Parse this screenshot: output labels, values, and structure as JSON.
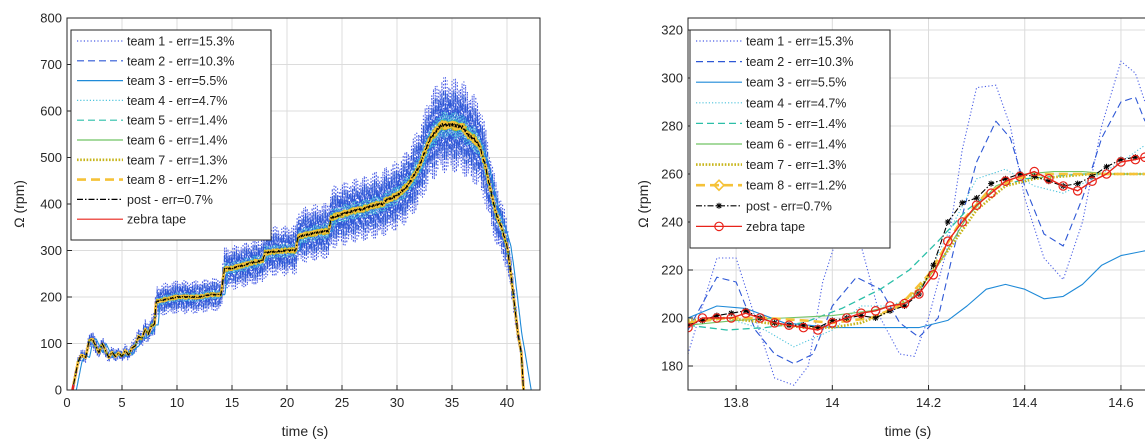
{
  "chart_data": [
    {
      "type": "line",
      "xlabel": "time (s)",
      "ylabel": "Ω (rpm)",
      "xlim": [
        0,
        43
      ],
      "ylim": [
        0,
        800
      ],
      "xticks": [
        0,
        5,
        10,
        15,
        20,
        25,
        30,
        35,
        40
      ],
      "xtick_labels": [
        "0",
        "5",
        "10",
        "15",
        "20",
        "25",
        "30",
        "35",
        "40"
      ],
      "yticks": [
        0,
        100,
        200,
        300,
        400,
        500,
        600,
        700,
        800
      ],
      "ytick_labels": [
        "0",
        "100",
        "200",
        "300",
        "400",
        "500",
        "600",
        "700",
        "800"
      ],
      "grid": true,
      "legend_position": "top-left",
      "legend": [
        "team 1 - err=15.3%",
        "team 2 - err=10.3%",
        "team 3 - err=5.5%",
        "team 4 - err=4.7%",
        "team 5 - err=1.4%",
        "team 6 - err=1.4%",
        "team 7 - err=1.3%",
        "team 8 - err=1.2%",
        "post - err=0.7%",
        "zebra tape"
      ],
      "series": [
        {
          "key": "zebra",
          "name": "zebra tape",
          "color": "#e8231a",
          "x": [
            0.5,
            1.0,
            1.3,
            1.7,
            2.0,
            2.3,
            2.6,
            2.9,
            3.2,
            3.5,
            3.8,
            4.1,
            4.4,
            4.7,
            5.0,
            5.3,
            5.6,
            5.9,
            6.2,
            6.5,
            6.8,
            7.1,
            7.4,
            7.7,
            7.95,
            8.1,
            9.0,
            10.0,
            11.0,
            12.0,
            13.0,
            14.0,
            14.3,
            15.0,
            16.0,
            17.0,
            17.8,
            18.0,
            19.0,
            20.0,
            20.8,
            21.0,
            22.0,
            23.0,
            23.8,
            24.0,
            25.0,
            26.0,
            27.0,
            28.0,
            28.7,
            29.0,
            30.0,
            31.0,
            32.0,
            33.0,
            34.0,
            35.0,
            36.0,
            36.5,
            37.0,
            37.5,
            38.0,
            38.5,
            39.0,
            39.5,
            40.0,
            40.3,
            40.6,
            41.0,
            41.3,
            41.5
          ],
          "y": [
            0,
            60,
            75,
            70,
            105,
            110,
            95,
            80,
            100,
            85,
            70,
            82,
            72,
            80,
            72,
            85,
            75,
            90,
            95,
            115,
            110,
            130,
            120,
            140,
            140,
            190,
            195,
            200,
            200,
            200,
            205,
            205,
            260,
            262,
            268,
            275,
            278,
            295,
            298,
            300,
            300,
            330,
            335,
            340,
            342,
            370,
            378,
            385,
            390,
            398,
            400,
            408,
            418,
            440,
            480,
            540,
            570,
            570,
            565,
            548,
            540,
            525,
            485,
            430,
            380,
            350,
            310,
            260,
            200,
            120,
            80,
            0
          ]
        },
        {
          "key": "team1",
          "name": "team 1 - err=15.3%",
          "color": "#4a5ee6"
        },
        {
          "key": "team2",
          "name": "team 2 - err=10.3%",
          "color": "#2e58d6"
        },
        {
          "key": "team3",
          "name": "team 3 - err=5.5%",
          "color": "#1f8ad8"
        },
        {
          "key": "team4",
          "name": "team 4 - err=4.7%",
          "color": "#4fc4dc"
        },
        {
          "key": "team5",
          "name": "team 5 - err=1.4%",
          "color": "#2cbfa8"
        },
        {
          "key": "team6",
          "name": "team 6 - err=1.4%",
          "color": "#72c465"
        },
        {
          "key": "team7",
          "name": "team 7 - err=1.3%",
          "color": "#c7b51c"
        },
        {
          "key": "team8",
          "name": "team 8 - err=1.2%",
          "color": "#f5c238"
        },
        {
          "key": "post",
          "name": "post - err=0.7%",
          "color": "#000000"
        }
      ]
    },
    {
      "type": "line",
      "xlabel": "time (s)",
      "ylabel": "Ω (rpm)",
      "xlim": [
        13.7,
        14.65
      ],
      "ylim": [
        170,
        325
      ],
      "xticks": [
        13.8,
        14.0,
        14.2,
        14.4,
        14.6
      ],
      "xtick_labels": [
        "13.8",
        "14",
        "14.2",
        "14.4",
        "14.6"
      ],
      "yticks": [
        180,
        200,
        220,
        240,
        260,
        280,
        300,
        320
      ],
      "ytick_labels": [
        "180",
        "200",
        "220",
        "240",
        "260",
        "280",
        "300",
        "320"
      ],
      "grid": true,
      "legend_position": "top-left",
      "legend": [
        "team 1 - err=15.3%",
        "team 2 - err=10.3%",
        "team 3 - err=5.5%",
        "team 4 - err=4.7%",
        "team 5 - err=1.4%",
        "team 6 - err=1.4%",
        "team 7 - err=1.3%",
        "team 8 - err=1.2%",
        "post - err=0.7%",
        "zebra tape"
      ],
      "series": [
        {
          "key": "team1",
          "name": "team 1 - err=15.3%",
          "color": "#4a5ee6",
          "x": [
            13.7,
            13.76,
            13.8,
            13.84,
            13.88,
            13.92,
            13.95,
            13.98,
            14.02,
            14.06,
            14.1,
            14.14,
            14.17,
            14.2,
            14.24,
            14.27,
            14.3,
            14.34,
            14.37,
            14.4,
            14.44,
            14.48,
            14.52,
            14.56,
            14.6,
            14.63,
            14.65
          ],
          "y": [
            185,
            225,
            225,
            200,
            175,
            172,
            180,
            215,
            240,
            230,
            200,
            185,
            184,
            200,
            230,
            270,
            296,
            297,
            280,
            250,
            225,
            216,
            240,
            280,
            307,
            302,
            290
          ]
        },
        {
          "key": "team2",
          "name": "team 2 - err=10.3%",
          "color": "#2e58d6",
          "x": [
            13.7,
            13.76,
            13.8,
            13.84,
            13.88,
            13.92,
            13.96,
            14.0,
            14.05,
            14.1,
            14.14,
            14.18,
            14.22,
            14.26,
            14.3,
            14.34,
            14.37,
            14.4,
            14.44,
            14.48,
            14.52,
            14.56,
            14.6,
            14.63,
            14.65
          ],
          "y": [
            195,
            217,
            215,
            195,
            185,
            181,
            185,
            205,
            217,
            212,
            198,
            192,
            200,
            235,
            265,
            282,
            275,
            255,
            235,
            230,
            250,
            275,
            290,
            292,
            282
          ]
        },
        {
          "key": "team3",
          "name": "team 3 - err=5.5%",
          "color": "#1f8ad8",
          "x": [
            13.7,
            13.76,
            13.82,
            13.9,
            14.0,
            14.1,
            14.18,
            14.24,
            14.28,
            14.32,
            14.36,
            14.4,
            14.44,
            14.48,
            14.52,
            14.56,
            14.6,
            14.65
          ],
          "y": [
            200,
            205,
            204,
            198,
            196,
            196,
            196,
            199,
            205,
            212,
            214,
            212,
            208,
            209,
            214,
            222,
            226,
            228
          ]
        },
        {
          "key": "team4",
          "name": "team 4 - err=4.7%",
          "color": "#4fc4dc",
          "x": [
            13.7,
            13.78,
            13.86,
            13.92,
            14.0,
            14.06,
            14.12,
            14.18,
            14.24,
            14.3,
            14.36,
            14.42,
            14.48,
            14.54,
            14.6,
            14.65
          ],
          "y": [
            198,
            200,
            195,
            188,
            195,
            205,
            205,
            210,
            235,
            258,
            262,
            255,
            252,
            258,
            265,
            272
          ]
        },
        {
          "key": "team5",
          "name": "team 5 - err=1.4%",
          "color": "#2cbfa8",
          "x": [
            13.7,
            13.78,
            13.86,
            13.94,
            14.02,
            14.1,
            14.16,
            14.22,
            14.28,
            14.34,
            14.4,
            14.46,
            14.52,
            14.58,
            14.65
          ],
          "y": [
            197,
            195,
            196,
            198,
            204,
            212,
            220,
            232,
            245,
            254,
            258,
            259,
            260,
            260,
            260
          ]
        },
        {
          "key": "team6",
          "name": "team 6 - err=1.4%",
          "color": "#72c465",
          "x": [
            13.7,
            13.8,
            13.9,
            14.0,
            14.08,
            14.16,
            14.22,
            14.28,
            14.34,
            14.4,
            14.46,
            14.52,
            14.58,
            14.65
          ],
          "y": [
            197,
            199,
            200,
            201,
            203,
            207,
            222,
            242,
            255,
            260,
            261,
            261,
            260,
            260
          ]
        },
        {
          "key": "team7",
          "name": "team 7 - err=1.3%",
          "color": "#c7b51c",
          "x": [
            13.7,
            13.78,
            13.86,
            13.94,
            14.0,
            14.06,
            14.12,
            14.18,
            14.24,
            14.3,
            14.36,
            14.42,
            14.48,
            14.54,
            14.6,
            14.65
          ],
          "y": [
            199,
            200,
            198,
            196,
            196,
            198,
            203,
            212,
            228,
            245,
            255,
            258,
            259,
            260,
            260,
            260
          ]
        },
        {
          "key": "team8",
          "name": "team 8 - err=1.2%",
          "color": "#f5c238",
          "x": [
            13.7,
            13.78,
            13.86,
            13.94,
            14.0,
            14.08,
            14.14,
            14.2,
            14.26,
            14.32,
            14.38,
            14.44,
            14.5,
            14.56,
            14.62,
            14.65
          ],
          "y": [
            198,
            200,
            200,
            199,
            198,
            200,
            205,
            218,
            238,
            252,
            258,
            260,
            260,
            260,
            260,
            260
          ]
        },
        {
          "key": "post",
          "name": "post - err=0.7%",
          "color": "#000000",
          "x": [
            13.7,
            13.73,
            13.76,
            13.79,
            13.82,
            13.85,
            13.88,
            13.91,
            13.94,
            13.97,
            14.0,
            14.03,
            14.06,
            14.09,
            14.12,
            14.15,
            14.18,
            14.21,
            14.24,
            14.27,
            14.3,
            14.33,
            14.36,
            14.39,
            14.42,
            14.45,
            14.48,
            14.51,
            14.54,
            14.57,
            14.6,
            14.63
          ],
          "y": [
            197,
            199,
            201,
            202,
            203,
            200,
            198,
            197,
            197,
            196,
            199,
            200,
            201,
            200,
            203,
            205,
            210,
            222,
            240,
            248,
            250,
            256,
            258,
            260,
            259,
            257,
            255,
            256,
            259,
            263,
            266,
            267
          ]
        },
        {
          "key": "zebra",
          "name": "zebra tape",
          "color": "#e8231a",
          "x": [
            13.7,
            13.73,
            13.76,
            13.79,
            13.82,
            13.85,
            13.88,
            13.91,
            13.94,
            13.97,
            14.0,
            14.03,
            14.06,
            14.09,
            14.12,
            14.15,
            14.18,
            14.21,
            14.24,
            14.27,
            14.3,
            14.33,
            14.36,
            14.39,
            14.42,
            14.45,
            14.48,
            14.51,
            14.54,
            14.57,
            14.6,
            14.63,
            14.65
          ],
          "y": [
            196,
            200,
            200,
            200,
            202,
            200,
            198,
            197,
            196,
            195,
            198,
            200,
            202,
            203,
            205,
            206,
            210,
            218,
            232,
            240,
            247,
            252,
            257,
            259,
            261,
            258,
            255,
            253,
            257,
            260,
            265,
            266,
            267
          ]
        }
      ]
    }
  ]
}
